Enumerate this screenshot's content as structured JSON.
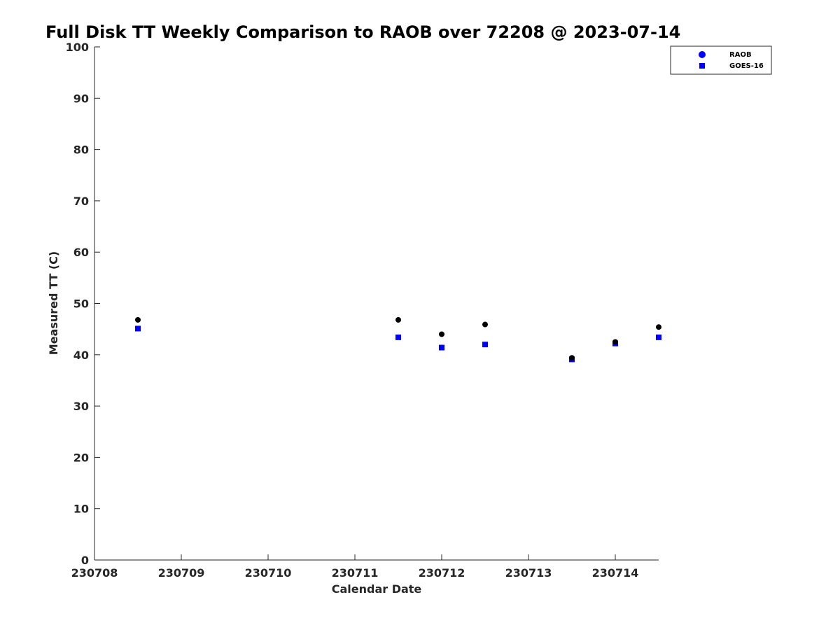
{
  "chart_data": {
    "type": "scatter",
    "title": "Full Disk TT Weekly Comparison to RAOB over 72208 @ 2023-07-14",
    "xlabel": "Calendar Date",
    "ylabel": "Measured TT (C)",
    "xlim": [
      "230708",
      "230714.5"
    ],
    "ylim": [
      0,
      100
    ],
    "x_ticks": [
      "230708",
      "230709",
      "230710",
      "230711",
      "230712",
      "230713",
      "230714"
    ],
    "y_ticks": [
      0,
      10,
      20,
      30,
      40,
      50,
      60,
      70,
      80,
      90,
      100
    ],
    "grid": false,
    "legend_position": "top-right",
    "series": [
      {
        "name": "RAOB",
        "marker": "circle",
        "color": "#0000ff",
        "points": [
          {
            "x": "230708.5",
            "y": 46.8
          },
          {
            "x": "230711.5",
            "y": 46.8
          },
          {
            "x": "230712",
            "y": 44.0
          },
          {
            "x": "230712.5",
            "y": 45.9
          },
          {
            "x": "230713.5",
            "y": 39.4
          },
          {
            "x": "230714",
            "y": 42.5
          },
          {
            "x": "230714.5",
            "y": 45.4
          }
        ]
      },
      {
        "name": "GOES-16",
        "marker": "square",
        "color": "#0000ff",
        "points": [
          {
            "x": "230708.5",
            "y": 45.1
          },
          {
            "x": "230711.5",
            "y": 43.4
          },
          {
            "x": "230712",
            "y": 41.4
          },
          {
            "x": "230712.5",
            "y": 42.0
          },
          {
            "x": "230713.5",
            "y": 39.1
          },
          {
            "x": "230714",
            "y": 42.2
          },
          {
            "x": "230714.5",
            "y": 43.4
          }
        ]
      }
    ],
    "plotted_marker_color": "#000000"
  }
}
